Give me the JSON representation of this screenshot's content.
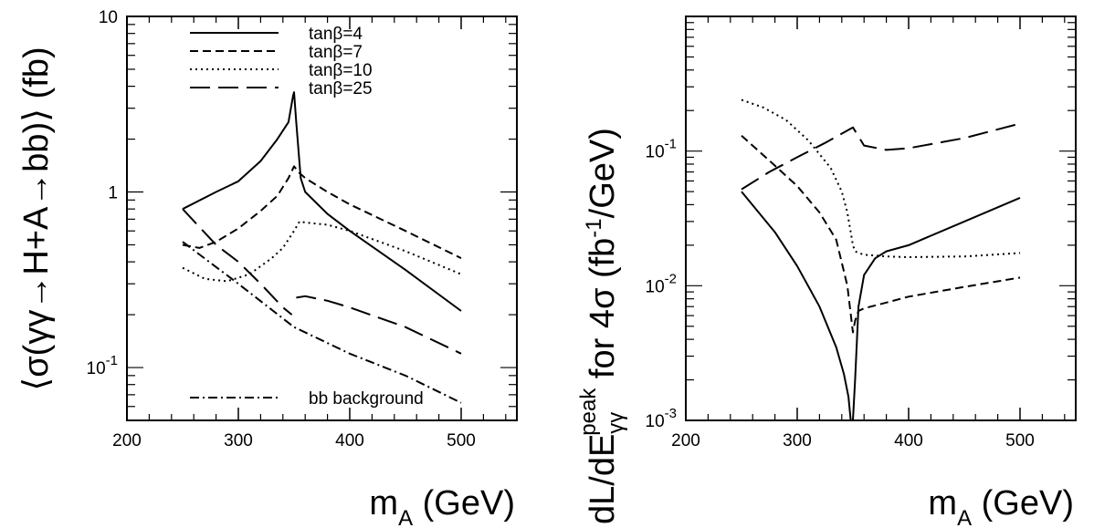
{
  "chart_data": [
    {
      "type": "line",
      "title": "",
      "xlabel": {
        "base": "m",
        "sub": "A",
        "rest": " (GeV)"
      },
      "ylabel": "⟨σ(γγ→H+A→bb)⟩ (fb)",
      "xlim": [
        200,
        550
      ],
      "ylim": [
        0.05,
        10
      ],
      "yscale": "log",
      "xticks": [
        200,
        300,
        400,
        500
      ],
      "xtick_labels": [
        "200",
        "300",
        "400",
        "500"
      ],
      "yticks": [
        {
          "value": 10,
          "label": "10",
          "exp": ""
        },
        {
          "value": 1,
          "label": "1",
          "exp": ""
        },
        {
          "value": 0.1,
          "label": "10",
          "exp": "-1"
        }
      ],
      "grid": false,
      "legend_position": "top-center",
      "series": [
        {
          "name": "tanβ=4",
          "style": "solid",
          "x": [
            250,
            280,
            300,
            320,
            335,
            345,
            349,
            350,
            352,
            356,
            360,
            380,
            400,
            450,
            500
          ],
          "y": [
            0.8,
            1.0,
            1.15,
            1.5,
            2.0,
            2.5,
            3.5,
            3.7,
            2.5,
            1.2,
            1.0,
            0.75,
            0.6,
            0.36,
            0.21
          ]
        },
        {
          "name": "tanβ=7",
          "style": "dashed",
          "x": [
            250,
            265,
            280,
            300,
            320,
            335,
            345,
            350,
            355,
            360,
            380,
            400,
            450,
            500
          ],
          "y": [
            0.5,
            0.48,
            0.52,
            0.62,
            0.78,
            0.95,
            1.2,
            1.4,
            1.28,
            1.2,
            1.0,
            0.85,
            0.6,
            0.42
          ]
        },
        {
          "name": "tanβ=10",
          "style": "dotted",
          "x": [
            250,
            270,
            290,
            310,
            330,
            340,
            350,
            355,
            360,
            380,
            400,
            450,
            500
          ],
          "y": [
            0.37,
            0.32,
            0.31,
            0.34,
            0.42,
            0.48,
            0.6,
            0.68,
            0.67,
            0.65,
            0.6,
            0.46,
            0.34
          ]
        },
        {
          "name": "tanβ=25",
          "style": "longdash",
          "segments": [
            {
              "x": [
                250,
                280,
                300,
                320,
                340,
                348
              ],
              "y": [
                0.8,
                0.5,
                0.4,
                0.3,
                0.22,
                0.2
              ]
            },
            {
              "x": [
                352,
                360,
                380,
                400,
                450,
                500
              ],
              "y": [
                0.25,
                0.255,
                0.24,
                0.22,
                0.17,
                0.12
              ]
            }
          ]
        },
        {
          "name": "bb background",
          "style": "dashdot",
          "x": [
            250,
            300,
            350,
            400,
            450,
            500
          ],
          "y": [
            0.52,
            0.3,
            0.17,
            0.12,
            0.09,
            0.063
          ]
        }
      ]
    },
    {
      "type": "line",
      "title": "",
      "xlabel": {
        "base": "m",
        "sub": "A",
        "rest": " (GeV)"
      },
      "ylabel": {
        "p1": "dL/dE",
        "sub": "γγ",
        "sup": "peak",
        "p2": " for 4σ (fb",
        "sup2": "-1",
        "p3": "/GeV)"
      },
      "xlim": [
        200,
        550
      ],
      "ylim": [
        0.001,
        1
      ],
      "yscale": "log",
      "xticks": [
        200,
        300,
        400,
        500
      ],
      "xtick_labels": [
        "200",
        "300",
        "400",
        "500"
      ],
      "yticks": [
        {
          "value": 0.1,
          "label": "10",
          "exp": "-1"
        },
        {
          "value": 0.01,
          "label": "10",
          "exp": "-2"
        },
        {
          "value": 0.001,
          "label": "10",
          "exp": "-3"
        }
      ],
      "grid": false,
      "series": [
        {
          "name": "tanβ=4",
          "style": "solid",
          "segments": [
            {
              "x": [
                250,
                280,
                300,
                320,
                335,
                342,
                346,
                348
              ],
              "y": [
                0.05,
                0.025,
                0.014,
                0.007,
                0.0035,
                0.0022,
                0.0015,
                0.001
              ]
            },
            {
              "x": [
                350,
                352,
                355,
                360,
                370,
                380,
                400,
                450,
                500
              ],
              "y": [
                0.001,
                0.002,
                0.007,
                0.012,
                0.016,
                0.018,
                0.02,
                0.03,
                0.045
              ]
            }
          ]
        },
        {
          "name": "tanβ=7",
          "style": "dashed",
          "x": [
            250,
            275,
            300,
            320,
            335,
            345,
            350,
            352,
            355,
            360,
            380,
            400,
            450,
            500
          ],
          "y": [
            0.13,
            0.085,
            0.055,
            0.035,
            0.022,
            0.01,
            0.0045,
            0.0055,
            0.0065,
            0.0068,
            0.0075,
            0.0083,
            0.0098,
            0.0115
          ]
        },
        {
          "name": "tanβ=10",
          "style": "dotted",
          "x": [
            250,
            270,
            290,
            310,
            330,
            340,
            345,
            348,
            350,
            352,
            355,
            360,
            380,
            400,
            450,
            500
          ],
          "y": [
            0.24,
            0.21,
            0.17,
            0.12,
            0.075,
            0.05,
            0.035,
            0.025,
            0.02,
            0.018,
            0.0175,
            0.017,
            0.0165,
            0.0163,
            0.0165,
            0.0175
          ]
        },
        {
          "name": "tanβ=25",
          "style": "longdash",
          "x": [
            250,
            275,
            300,
            325,
            350,
            360,
            380,
            400,
            450,
            500
          ],
          "y": [
            0.052,
            0.07,
            0.09,
            0.115,
            0.15,
            0.11,
            0.102,
            0.105,
            0.125,
            0.16
          ]
        }
      ]
    }
  ]
}
